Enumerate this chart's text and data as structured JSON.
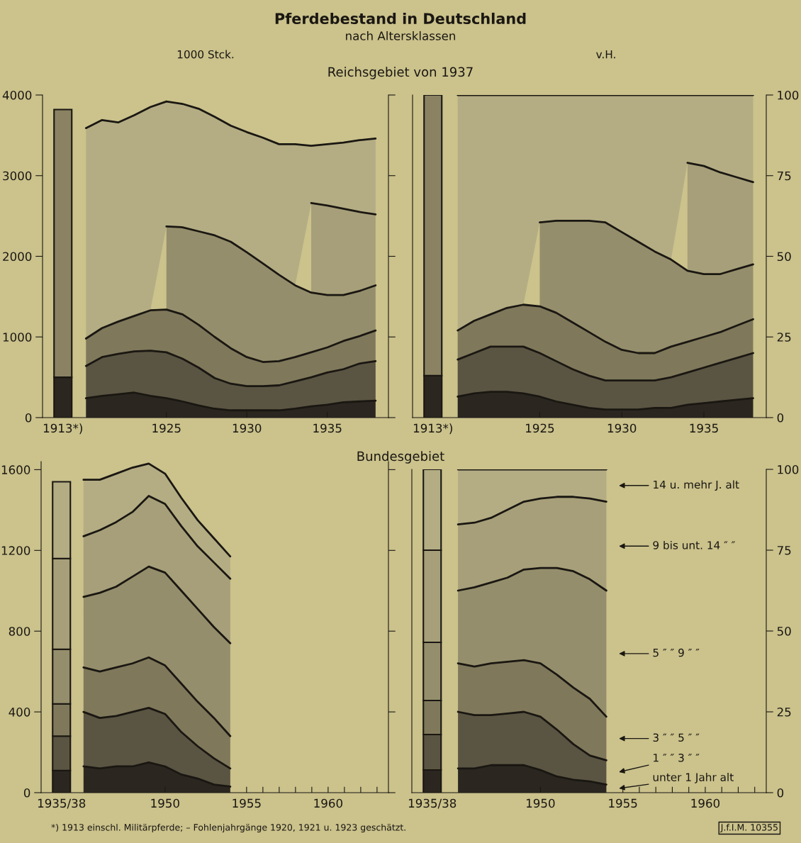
{
  "chart_data": [
    {
      "type": "bar",
      "stacked": true,
      "categories": [
        "1913*)"
      ],
      "ylabel": "1000 Stck.",
      "ylim": [
        0,
        4000
      ],
      "yticks": [
        0,
        1000,
        2000,
        3000,
        4000
      ],
      "series": [
        {
          "color": "#2b2720",
          "values": [
            500
          ]
        },
        {
          "color": "#8a8262",
          "values": [
            3320
          ]
        }
      ]
    },
    {
      "type": "area",
      "stacked": true,
      "title": "Pferdebestand in Deutschland",
      "subtitle": "nach Altersklassen",
      "annotations": [
        "Reichsgebiet von 1937"
      ],
      "x": [
        1920,
        1921,
        1922,
        1923,
        1924,
        1925,
        1926,
        1927,
        1928,
        1929,
        1930,
        1931,
        1932,
        1933,
        1934,
        1935,
        1936,
        1937,
        1938
      ],
      "xlim": [
        1917.3,
        1938.8
      ],
      "xticks": [
        1925,
        1930,
        1935
      ],
      "ylim": [
        0,
        4000
      ],
      "yticks": [
        0,
        1000,
        2000,
        3000,
        4000
      ],
      "tick_labels": "x",
      "series": [
        {
          "color": "#2b2720",
          "values": [
            240,
            270,
            290,
            310,
            270,
            240,
            200,
            150,
            110,
            90,
            90,
            90,
            90,
            110,
            140,
            160,
            190,
            200,
            210
          ]
        },
        {
          "color": "#5a5442",
          "values": [
            400,
            480,
            500,
            510,
            560,
            570,
            530,
            470,
            380,
            330,
            300,
            300,
            310,
            340,
            360,
            400,
            410,
            470,
            490
          ]
        },
        {
          "color": "#7f785b",
          "values": [
            340,
            360,
            400,
            440,
            500,
            530,
            550,
            530,
            510,
            440,
            360,
            300,
            300,
            300,
            310,
            310,
            350,
            340,
            380
          ]
        },
        {
          "color": "#958e6c",
          "values": [
            null,
            null,
            null,
            null,
            null,
            1030,
            1080,
            1160,
            1260,
            1320,
            1300,
            1220,
            1070,
            890,
            740,
            650,
            570,
            560,
            560
          ]
        },
        {
          "color": "#a69f79",
          "values": [
            null,
            null,
            null,
            null,
            null,
            null,
            null,
            null,
            null,
            null,
            null,
            null,
            null,
            null,
            1110,
            1110,
            1070,
            980,
            880
          ]
        },
        {
          "color": "#b4ad84",
          "values": [
            2610,
            2580,
            2470,
            2490,
            2520,
            1550,
            1530,
            1520,
            1470,
            1440,
            1490,
            1560,
            1620,
            1750,
            710,
            760,
            820,
            890,
            940
          ]
        }
      ]
    },
    {
      "type": "bar",
      "stacked": true,
      "categories": [
        "1913*)"
      ],
      "ylabel": "v.H.",
      "ylim": [
        0,
        100
      ],
      "yticks": [
        0,
        25,
        50,
        75,
        100
      ],
      "tick_labels": "x",
      "series": [
        {
          "color": "#2b2720",
          "values": [
            13
          ]
        },
        {
          "color": "#8a8262",
          "values": [
            87
          ]
        }
      ]
    },
    {
      "type": "area",
      "stacked": true,
      "x": [
        1920,
        1921,
        1922,
        1923,
        1924,
        1925,
        1926,
        1927,
        1928,
        1929,
        1930,
        1931,
        1932,
        1933,
        1934,
        1935,
        1936,
        1937,
        1938
      ],
      "xlim": [
        1917.25,
        1938.8
      ],
      "xticks": [
        1925,
        1930,
        1935
      ],
      "ylim": [
        0,
        100
      ],
      "yticks": [
        0,
        25,
        50,
        75,
        100
      ],
      "series": [
        {
          "color": "#2b2720",
          "values": [
            6.5,
            7.5,
            8,
            8,
            7.5,
            6.5,
            5,
            4,
            3,
            2.5,
            2.5,
            2.5,
            3,
            3,
            4,
            4.5,
            5,
            5.5,
            6
          ]
        },
        {
          "color": "#5a5442",
          "values": [
            11.5,
            12.5,
            14,
            14,
            14.5,
            13.5,
            12.5,
            11,
            10,
            9,
            9,
            9,
            8.5,
            9.5,
            10,
            11,
            12,
            13,
            14
          ]
        },
        {
          "color": "#7f785b",
          "values": [
            9,
            10,
            10,
            12,
            13,
            14.5,
            15,
            14.5,
            13.5,
            12,
            9.5,
            8.5,
            8.5,
            9.5,
            9.5,
            9.5,
            9.5,
            10,
            10.5
          ]
        },
        {
          "color": "#958e6c",
          "values": [
            null,
            null,
            null,
            null,
            null,
            26,
            28.5,
            31.5,
            34.5,
            37,
            36.5,
            34.5,
            31.5,
            27,
            22,
            19.5,
            18,
            17.5,
            17
          ]
        },
        {
          "color": "#a69f79",
          "values": [
            null,
            null,
            null,
            null,
            null,
            null,
            null,
            null,
            null,
            null,
            null,
            null,
            null,
            null,
            33.5,
            33.5,
            31.5,
            28.5,
            25.5
          ]
        },
        {
          "color": "#b4ad84",
          "values": [
            73,
            70,
            68,
            66,
            65,
            39.5,
            39,
            39,
            39,
            39.5,
            42.5,
            45.5,
            48.5,
            51,
            21,
            22,
            24,
            25.5,
            27
          ]
        }
      ]
    },
    {
      "type": "bar",
      "stacked": true,
      "categories": [
        "1935/38"
      ],
      "ylim": [
        0,
        1640
      ],
      "yticks": [
        0,
        400,
        800,
        1200,
        1600
      ],
      "series": [
        {
          "color": "#2b2720",
          "values": [
            110
          ]
        },
        {
          "color": "#5a5442",
          "values": [
            170
          ]
        },
        {
          "color": "#7f785b",
          "values": [
            160
          ]
        },
        {
          "color": "#958e6c",
          "values": [
            270
          ]
        },
        {
          "color": "#a69f79",
          "values": [
            450
          ]
        },
        {
          "color": "#b4ad84",
          "values": [
            380
          ]
        }
      ]
    },
    {
      "type": "area",
      "stacked": true,
      "annotations": [
        "Bundesgebiet",
        "*) 1913 einschl. Militärpferde; – Fohlenjahrgänge 1920, 1921 u. 1923 geschätzt."
      ],
      "x": [
        1945,
        1946,
        1947,
        1948,
        1949,
        1950,
        1951,
        1952,
        1953,
        1954
      ],
      "xlim": [
        1942.4,
        1963.7
      ],
      "xticks": [
        1950,
        1955,
        {
          "value": 1956,
          "label": null
        },
        {
          "value": 1957,
          "label": null
        },
        {
          "value": 1958,
          "label": null
        },
        {
          "value": 1959,
          "label": null
        },
        1960,
        {
          "value": 1961,
          "label": null
        },
        {
          "value": 1962,
          "label": null
        },
        {
          "value": 1963,
          "label": null
        }
      ],
      "ylim": [
        0,
        1640
      ],
      "yticks": [
        0,
        400,
        800,
        1200,
        1600
      ],
      "tick_labels": "x",
      "series": [
        {
          "color": "#2b2720",
          "values": [
            130,
            120,
            130,
            130,
            150,
            130,
            90,
            70,
            40,
            30
          ]
        },
        {
          "color": "#5a5442",
          "values": [
            270,
            250,
            250,
            270,
            270,
            260,
            210,
            160,
            130,
            90
          ]
        },
        {
          "color": "#7f785b",
          "values": [
            220,
            230,
            240,
            240,
            250,
            240,
            240,
            220,
            200,
            160
          ]
        },
        {
          "color": "#958e6c",
          "values": [
            350,
            390,
            400,
            430,
            450,
            460,
            460,
            460,
            450,
            460
          ]
        },
        {
          "color": "#a69f79",
          "values": [
            300,
            310,
            320,
            320,
            350,
            340,
            320,
            310,
            320,
            320
          ]
        },
        {
          "color": "#b4ad84",
          "values": [
            280,
            250,
            240,
            220,
            160,
            150,
            140,
            130,
            120,
            110
          ]
        }
      ]
    },
    {
      "type": "bar",
      "stacked": true,
      "categories": [
        "1935/38"
      ],
      "ylim": [
        0,
        100
      ],
      "yticks": [
        0,
        25,
        50,
        75,
        100
      ],
      "tick_labels": "x",
      "series": [
        {
          "color": "#2b2720",
          "values": [
            7
          ]
        },
        {
          "color": "#5a5442",
          "values": [
            11
          ]
        },
        {
          "color": "#7f785b",
          "values": [
            10.5
          ]
        },
        {
          "color": "#958e6c",
          "values": [
            18
          ]
        },
        {
          "color": "#a69f79",
          "values": [
            28.5
          ]
        },
        {
          "color": "#b4ad84",
          "values": [
            25
          ]
        }
      ]
    },
    {
      "type": "area",
      "stacked": true,
      "legend": "right",
      "annotations": [
        "J.f.I.M. 10355"
      ],
      "x": [
        1945,
        1946,
        1947,
        1948,
        1949,
        1950,
        1951,
        1952,
        1953,
        1954
      ],
      "xlim": [
        1942.2,
        1963.7
      ],
      "xticks": [
        1950,
        1955,
        {
          "value": 1956,
          "label": null
        },
        {
          "value": 1957,
          "label": null
        },
        {
          "value": 1958,
          "label": null
        },
        {
          "value": 1959,
          "label": null
        },
        1960,
        {
          "value": 1961,
          "label": null
        },
        {
          "value": 1962,
          "label": null
        },
        {
          "value": 1963,
          "label": null
        }
      ],
      "ylim": [
        0,
        100
      ],
      "yticks": [
        0,
        25,
        50,
        75,
        100
      ],
      "series": [
        {
          "name": "unter 1 Jahr alt",
          "color": "#2b2720",
          "values": [
            7.5,
            7.5,
            8.5,
            8.5,
            8.5,
            7,
            5,
            4,
            3.5,
            2.5
          ]
        },
        {
          "name": "1 ″ ″ 3 ″ ″",
          "color": "#5a5442",
          "values": [
            17.5,
            16.5,
            15.5,
            16,
            16.5,
            16.5,
            14.5,
            11,
            8,
            7.5
          ]
        },
        {
          "name": "3 ″ ″ 5 ″ ″",
          "color": "#7f785b",
          "values": [
            15,
            15,
            16,
            16,
            16,
            16.5,
            17,
            17.5,
            17.5,
            13.5
          ]
        },
        {
          "name": "5 ″ ″ 9 ″ ″",
          "color": "#958e6c",
          "values": [
            22.5,
            24.5,
            25,
            26,
            28,
            29.5,
            33,
            36,
            37,
            39
          ]
        },
        {
          "name": "9 bis unt. 14 ″ ″",
          "color": "#a69f79",
          "values": [
            20.5,
            20,
            20,
            21,
            21,
            21.5,
            22,
            23,
            25,
            27.5
          ]
        },
        {
          "name": "14 u. mehr J. alt",
          "color": "#b4ad84",
          "values": [
            17,
            16.5,
            15,
            12.5,
            10,
            9,
            8.5,
            8.5,
            9,
            10
          ]
        }
      ]
    }
  ]
}
